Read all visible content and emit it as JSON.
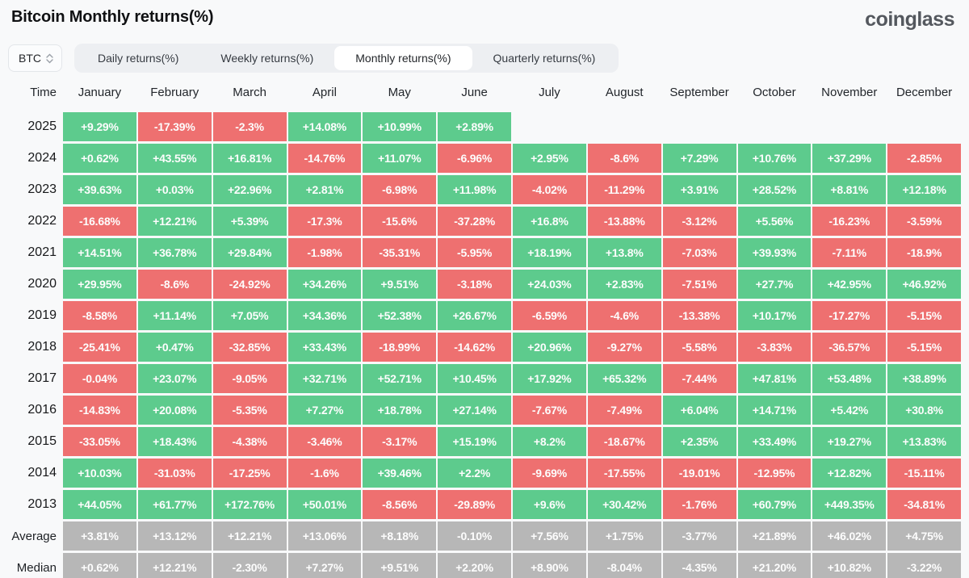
{
  "header": {
    "title": "Bitcoin Monthly returns(%)",
    "logo": "coinglass"
  },
  "controls": {
    "symbol_select": {
      "value": "BTC",
      "icon": "updown-chevrons-icon"
    },
    "tabs": [
      {
        "label": "Daily returns(%)",
        "active": false
      },
      {
        "label": "Weekly returns(%)",
        "active": false
      },
      {
        "label": "Monthly returns(%)",
        "active": true
      },
      {
        "label": "Quarterly returns(%)",
        "active": false
      }
    ]
  },
  "colors": {
    "positive": "#5dcb8d",
    "negative": "#ee7070",
    "summary": "#b7b7b7",
    "page_bg": "#f8f9fa"
  },
  "table": {
    "time_header": "Time",
    "months": [
      "January",
      "February",
      "March",
      "April",
      "May",
      "June",
      "July",
      "August",
      "September",
      "October",
      "November",
      "December"
    ],
    "rows": [
      {
        "label": "2025",
        "type": "year",
        "values": [
          "+9.29%",
          "-17.39%",
          "-2.3%",
          "+14.08%",
          "+10.99%",
          "+2.89%",
          null,
          null,
          null,
          null,
          null,
          null
        ]
      },
      {
        "label": "2024",
        "type": "year",
        "values": [
          "+0.62%",
          "+43.55%",
          "+16.81%",
          "-14.76%",
          "+11.07%",
          "-6.96%",
          "+2.95%",
          "-8.6%",
          "+7.29%",
          "+10.76%",
          "+37.29%",
          "-2.85%"
        ]
      },
      {
        "label": "2023",
        "type": "year",
        "values": [
          "+39.63%",
          "+0.03%",
          "+22.96%",
          "+2.81%",
          "-6.98%",
          "+11.98%",
          "-4.02%",
          "-11.29%",
          "+3.91%",
          "+28.52%",
          "+8.81%",
          "+12.18%"
        ]
      },
      {
        "label": "2022",
        "type": "year",
        "values": [
          "-16.68%",
          "+12.21%",
          "+5.39%",
          "-17.3%",
          "-15.6%",
          "-37.28%",
          "+16.8%",
          "-13.88%",
          "-3.12%",
          "+5.56%",
          "-16.23%",
          "-3.59%"
        ]
      },
      {
        "label": "2021",
        "type": "year",
        "values": [
          "+14.51%",
          "+36.78%",
          "+29.84%",
          "-1.98%",
          "-35.31%",
          "-5.95%",
          "+18.19%",
          "+13.8%",
          "-7.03%",
          "+39.93%",
          "-7.11%",
          "-18.9%"
        ]
      },
      {
        "label": "2020",
        "type": "year",
        "values": [
          "+29.95%",
          "-8.6%",
          "-24.92%",
          "+34.26%",
          "+9.51%",
          "-3.18%",
          "+24.03%",
          "+2.83%",
          "-7.51%",
          "+27.7%",
          "+42.95%",
          "+46.92%"
        ]
      },
      {
        "label": "2019",
        "type": "year",
        "values": [
          "-8.58%",
          "+11.14%",
          "+7.05%",
          "+34.36%",
          "+52.38%",
          "+26.67%",
          "-6.59%",
          "-4.6%",
          "-13.38%",
          "+10.17%",
          "-17.27%",
          "-5.15%"
        ]
      },
      {
        "label": "2018",
        "type": "year",
        "values": [
          "-25.41%",
          "+0.47%",
          "-32.85%",
          "+33.43%",
          "-18.99%",
          "-14.62%",
          "+20.96%",
          "-9.27%",
          "-5.58%",
          "-3.83%",
          "-36.57%",
          "-5.15%"
        ]
      },
      {
        "label": "2017",
        "type": "year",
        "values": [
          "-0.04%",
          "+23.07%",
          "-9.05%",
          "+32.71%",
          "+52.71%",
          "+10.45%",
          "+17.92%",
          "+65.32%",
          "-7.44%",
          "+47.81%",
          "+53.48%",
          "+38.89%"
        ]
      },
      {
        "label": "2016",
        "type": "year",
        "values": [
          "-14.83%",
          "+20.08%",
          "-5.35%",
          "+7.27%",
          "+18.78%",
          "+27.14%",
          "-7.67%",
          "-7.49%",
          "+6.04%",
          "+14.71%",
          "+5.42%",
          "+30.8%"
        ]
      },
      {
        "label": "2015",
        "type": "year",
        "values": [
          "-33.05%",
          "+18.43%",
          "-4.38%",
          "-3.46%",
          "-3.17%",
          "+15.19%",
          "+8.2%",
          "-18.67%",
          "+2.35%",
          "+33.49%",
          "+19.27%",
          "+13.83%"
        ]
      },
      {
        "label": "2014",
        "type": "year",
        "values": [
          "+10.03%",
          "-31.03%",
          "-17.25%",
          "-1.6%",
          "+39.46%",
          "+2.2%",
          "-9.69%",
          "-17.55%",
          "-19.01%",
          "-12.95%",
          "+12.82%",
          "-15.11%"
        ]
      },
      {
        "label": "2013",
        "type": "year",
        "values": [
          "+44.05%",
          "+61.77%",
          "+172.76%",
          "+50.01%",
          "-8.56%",
          "-29.89%",
          "+9.6%",
          "+30.42%",
          "-1.76%",
          "+60.79%",
          "+449.35%",
          "-34.81%"
        ]
      },
      {
        "label": "Average",
        "type": "summary",
        "values": [
          "+3.81%",
          "+13.12%",
          "+12.21%",
          "+13.06%",
          "+8.18%",
          "-0.10%",
          "+7.56%",
          "+1.75%",
          "-3.77%",
          "+21.89%",
          "+46.02%",
          "+4.75%"
        ]
      },
      {
        "label": "Median",
        "type": "summary",
        "values": [
          "+0.62%",
          "+12.21%",
          "-2.30%",
          "+7.27%",
          "+9.51%",
          "+2.20%",
          "+8.90%",
          "-8.04%",
          "-4.35%",
          "+21.20%",
          "+10.82%",
          "-3.22%"
        ]
      }
    ]
  }
}
